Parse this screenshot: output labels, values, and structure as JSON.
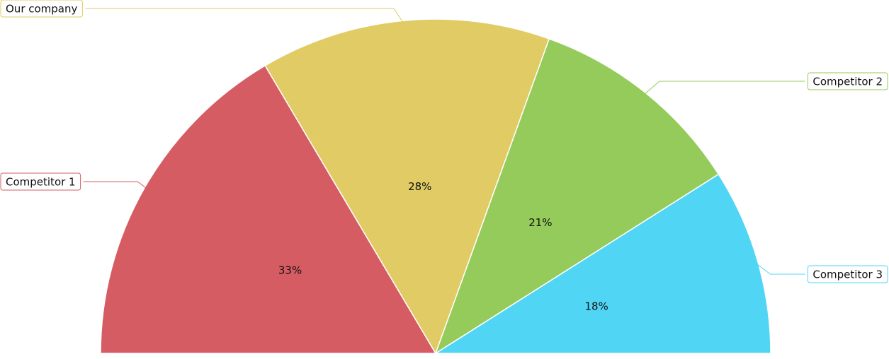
{
  "chart_data": {
    "type": "semi-pie",
    "categories": [
      "Competitor 1",
      "Our company",
      "Competitor 2",
      "Competitor 3"
    ],
    "values": [
      33,
      28,
      21,
      18
    ],
    "value_labels": [
      "33%",
      "28%",
      "21%",
      "18%"
    ],
    "colors": [
      "#d65c63",
      "#e1cb64",
      "#94cb5a",
      "#50d5f5"
    ]
  }
}
